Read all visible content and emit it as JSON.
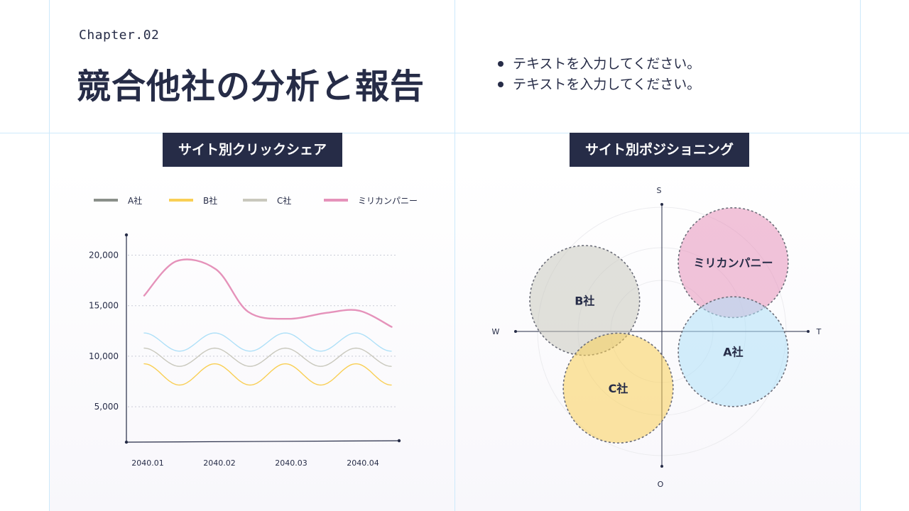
{
  "header": {
    "chapter": "Chapter.02",
    "title": "競合他社の分析と報告",
    "bullets": [
      "テキストを入力してください。",
      "テキストを入力してください。"
    ]
  },
  "sections": {
    "left_label": "サイト別クリックシェア",
    "right_label": "サイト別ポジショニング"
  },
  "colors": {
    "navy": "#262c47",
    "a": "#8a908a",
    "b": "#f9cf55",
    "c": "#c9c8bd",
    "mirikan": "#e592ba",
    "light_blue": "#aee0f8"
  },
  "chart_data": [
    {
      "type": "line",
      "title": "サイト別クリックシェア",
      "x": [
        "2040.01",
        "2040.02",
        "2040.03",
        "2040.04"
      ],
      "ylim": [
        1500,
        22000
      ],
      "yticks": [
        5000,
        10000,
        15000,
        20000
      ],
      "ytick_labels": [
        "5,000",
        "10,000",
        "15,000",
        "20,000"
      ],
      "grid": true,
      "legend_position": "top",
      "legend": [
        "A社",
        "B社",
        "C社",
        "ミリカンパニー"
      ],
      "series": [
        {
          "name": "ミリカンパニー",
          "color": "#e592ba",
          "x": [
            0.0,
            0.45,
            1.0,
            1.45,
            2.0,
            2.55,
            3.0,
            3.45
          ],
          "values": [
            16000,
            19400,
            18600,
            14400,
            13700,
            14300,
            14500,
            12900
          ]
        },
        {
          "color": "#aee0f8",
          "shape": "wave",
          "baseline": 11400,
          "amplitude": 900,
          "cycles": 3.5
        },
        {
          "color": "#c9c8bd",
          "shape": "wave",
          "baseline": 9900,
          "amplitude": 900,
          "cycles": 3.5
        },
        {
          "color": "#f9cf55",
          "shape": "wave",
          "baseline": 8200,
          "amplitude": 1050,
          "cycles": 3.5
        }
      ]
    },
    {
      "type": "scatter",
      "title": "サイト別ポジショニング",
      "axis_labels": {
        "top": "S",
        "bottom": "O",
        "left": "W",
        "right": "T"
      },
      "xlim": [
        -1,
        1
      ],
      "ylim": [
        -1,
        1
      ],
      "bubbles": [
        {
          "label": "ミリカンパニー",
          "x": 0.49,
          "y": 0.51,
          "r": 0.37,
          "color": "#e592ba"
        },
        {
          "label": "B社",
          "x": -0.53,
          "y": 0.23,
          "r": 0.37,
          "color": "#c9c8bd"
        },
        {
          "label": "A社",
          "x": 0.49,
          "y": -0.15,
          "r": 0.37,
          "color": "#aee0f8"
        },
        {
          "label": "C社",
          "x": -0.3,
          "y": -0.42,
          "r": 0.37,
          "color": "#f9cf55"
        }
      ]
    }
  ]
}
